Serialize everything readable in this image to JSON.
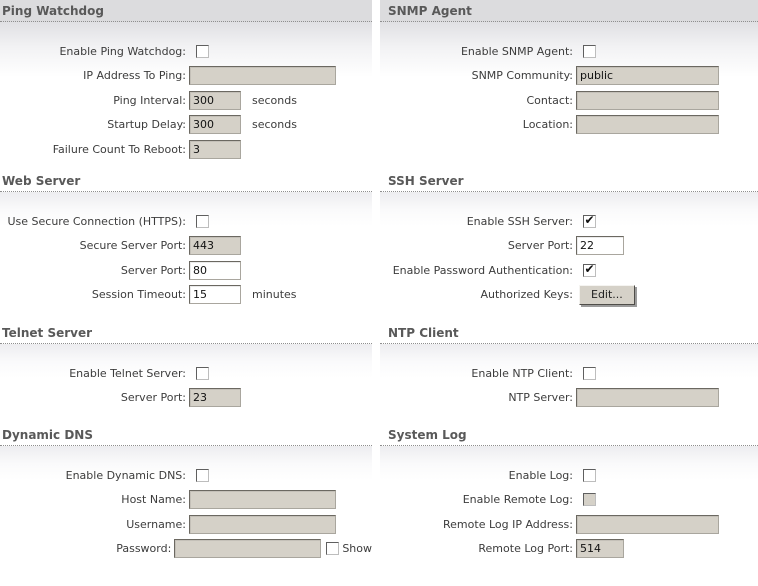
{
  "colors": {
    "disabled_input_bg": "#d5d1c8",
    "enabled_input_bg": "#ffffff",
    "header_text": "#595959",
    "top_band_bg": "#dcdcde",
    "button_bg": "#d5d1c8"
  },
  "sections": [
    {
      "id": "ping-watchdog",
      "title": "Ping Watchdog",
      "fields": [
        {
          "name": "enable-ping-watchdog-checkbox",
          "label": "Enable Ping Watchdog:",
          "type": "checkbox",
          "checked": false,
          "disabled": false
        },
        {
          "name": "ip-address-to-ping-input",
          "label": "IP Address To Ping:",
          "type": "text",
          "value": "",
          "size": "wide",
          "disabled": true
        },
        {
          "name": "ping-interval-input",
          "label": "Ping Interval:",
          "type": "text",
          "value": "300",
          "size": "narrow",
          "disabled": true,
          "unit": "seconds"
        },
        {
          "name": "startup-delay-input",
          "label": "Startup Delay:",
          "type": "text",
          "value": "300",
          "size": "narrow",
          "disabled": true,
          "unit": "seconds"
        },
        {
          "name": "failure-count-to-reboot-input",
          "label": "Failure Count To Reboot:",
          "type": "text",
          "value": "3",
          "size": "narrow",
          "disabled": true
        }
      ]
    },
    {
      "id": "snmp-agent",
      "title": "SNMP Agent",
      "fields": [
        {
          "name": "enable-snmp-agent-checkbox",
          "label": "Enable SNMP Agent:",
          "type": "checkbox",
          "checked": false,
          "disabled": false
        },
        {
          "name": "snmp-community-input",
          "label": "SNMP Community:",
          "type": "text",
          "value": "public",
          "size": "wide",
          "disabled": true
        },
        {
          "name": "contact-input",
          "label": "Contact:",
          "type": "text",
          "value": "",
          "size": "wide",
          "disabled": true
        },
        {
          "name": "location-input",
          "label": "Location:",
          "type": "text",
          "value": "",
          "size": "wide",
          "disabled": true
        }
      ]
    },
    {
      "id": "web-server",
      "title": "Web Server",
      "fields": [
        {
          "name": "use-secure-connection-https-checkbox",
          "label": "Use Secure Connection (HTTPS):",
          "type": "checkbox",
          "checked": false,
          "disabled": false
        },
        {
          "name": "secure-server-port-input",
          "label": "Secure Server Port:",
          "type": "text",
          "value": "443",
          "size": "narrow",
          "disabled": true
        },
        {
          "name": "web-server-port-input",
          "label": "Server Port:",
          "type": "text",
          "value": "80",
          "size": "narrow",
          "disabled": false
        },
        {
          "name": "session-timeout-input",
          "label": "Session Timeout:",
          "type": "text",
          "value": "15",
          "size": "narrow",
          "disabled": false,
          "unit": "minutes"
        }
      ]
    },
    {
      "id": "ssh-server",
      "title": "SSH Server",
      "fields": [
        {
          "name": "enable-ssh-server-checkbox",
          "label": "Enable SSH Server:",
          "type": "checkbox",
          "checked": true,
          "disabled": false
        },
        {
          "name": "ssh-server-port-input",
          "label": "Server Port:",
          "type": "text",
          "value": "22",
          "size": "narrow",
          "disabled": false
        },
        {
          "name": "enable-password-authentication-checkbox",
          "label": "Enable Password Authentication:",
          "type": "checkbox",
          "checked": true,
          "disabled": false
        },
        {
          "name": "authorized-keys-edit-button",
          "label": "Authorized Keys:",
          "type": "button",
          "button_label": "Edit..."
        }
      ]
    },
    {
      "id": "telnet-server",
      "title": "Telnet Server",
      "fields": [
        {
          "name": "enable-telnet-server-checkbox",
          "label": "Enable Telnet Server:",
          "type": "checkbox",
          "checked": false,
          "disabled": false
        },
        {
          "name": "telnet-server-port-input",
          "label": "Server Port:",
          "type": "text",
          "value": "23",
          "size": "narrow",
          "disabled": true
        }
      ]
    },
    {
      "id": "ntp-client",
      "title": "NTP Client",
      "fields": [
        {
          "name": "enable-ntp-client-checkbox",
          "label": "Enable NTP Client:",
          "type": "checkbox",
          "checked": false,
          "disabled": false
        },
        {
          "name": "ntp-server-input",
          "label": "NTP Server:",
          "type": "text",
          "value": "",
          "size": "wide",
          "disabled": true
        }
      ]
    },
    {
      "id": "dynamic-dns",
      "title": "Dynamic DNS",
      "fields": [
        {
          "name": "enable-dynamic-dns-checkbox",
          "label": "Enable Dynamic DNS:",
          "type": "checkbox",
          "checked": false,
          "disabled": false
        },
        {
          "name": "host-name-input",
          "label": "Host Name:",
          "type": "text",
          "value": "",
          "size": "wide",
          "disabled": true
        },
        {
          "name": "username-input",
          "label": "Username:",
          "type": "text",
          "value": "",
          "size": "wide",
          "disabled": true
        },
        {
          "name": "password-input",
          "label": "Password:",
          "type": "text",
          "value": "",
          "size": "wide",
          "disabled": true,
          "suffix_checkbox": {
            "name": "show-password-checkbox",
            "label": "Show",
            "checked": false,
            "disabled": false
          }
        }
      ]
    },
    {
      "id": "system-log",
      "title": "System Log",
      "fields": [
        {
          "name": "enable-log-checkbox",
          "label": "Enable Log:",
          "type": "checkbox",
          "checked": false,
          "disabled": false
        },
        {
          "name": "enable-remote-log-checkbox",
          "label": "Enable Remote Log:",
          "type": "checkbox",
          "checked": false,
          "disabled": true
        },
        {
          "name": "remote-log-ip-address-input",
          "label": "Remote Log IP Address:",
          "type": "text",
          "value": "",
          "size": "wide",
          "disabled": true
        },
        {
          "name": "remote-log-port-input",
          "label": "Remote Log Port:",
          "type": "text",
          "value": "514",
          "size": "narrow",
          "disabled": true
        }
      ]
    }
  ]
}
